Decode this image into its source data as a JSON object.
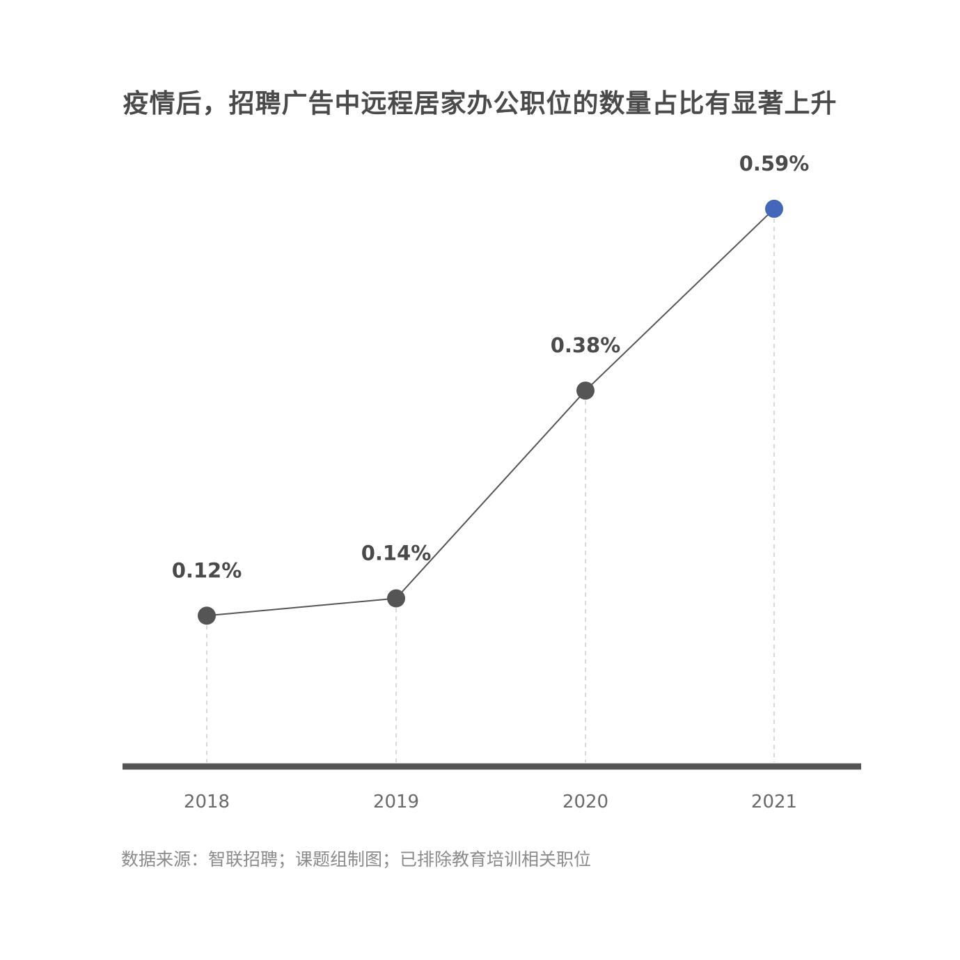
{
  "chart_data": {
    "type": "line",
    "title": "疫情后，招聘广告中远程居家办公职位的数量占比有显著上升",
    "categories": [
      "2018",
      "2019",
      "2020",
      "2021"
    ],
    "values": [
      0.12,
      0.14,
      0.38,
      0.59
    ],
    "value_labels": [
      "0.12%",
      "0.14%",
      "0.38%",
      "0.59%"
    ],
    "ylim": [
      0,
      0.7
    ],
    "grid": false,
    "xlabel": "",
    "ylabel": "",
    "source": "数据来源：智联招聘；课题组制图；已排除教育培训相关职位",
    "colors": {
      "line": "#555555",
      "point": "#555555",
      "highlight_point": "#4466bb",
      "axis": "#555555",
      "guide": "#cccccc"
    }
  }
}
